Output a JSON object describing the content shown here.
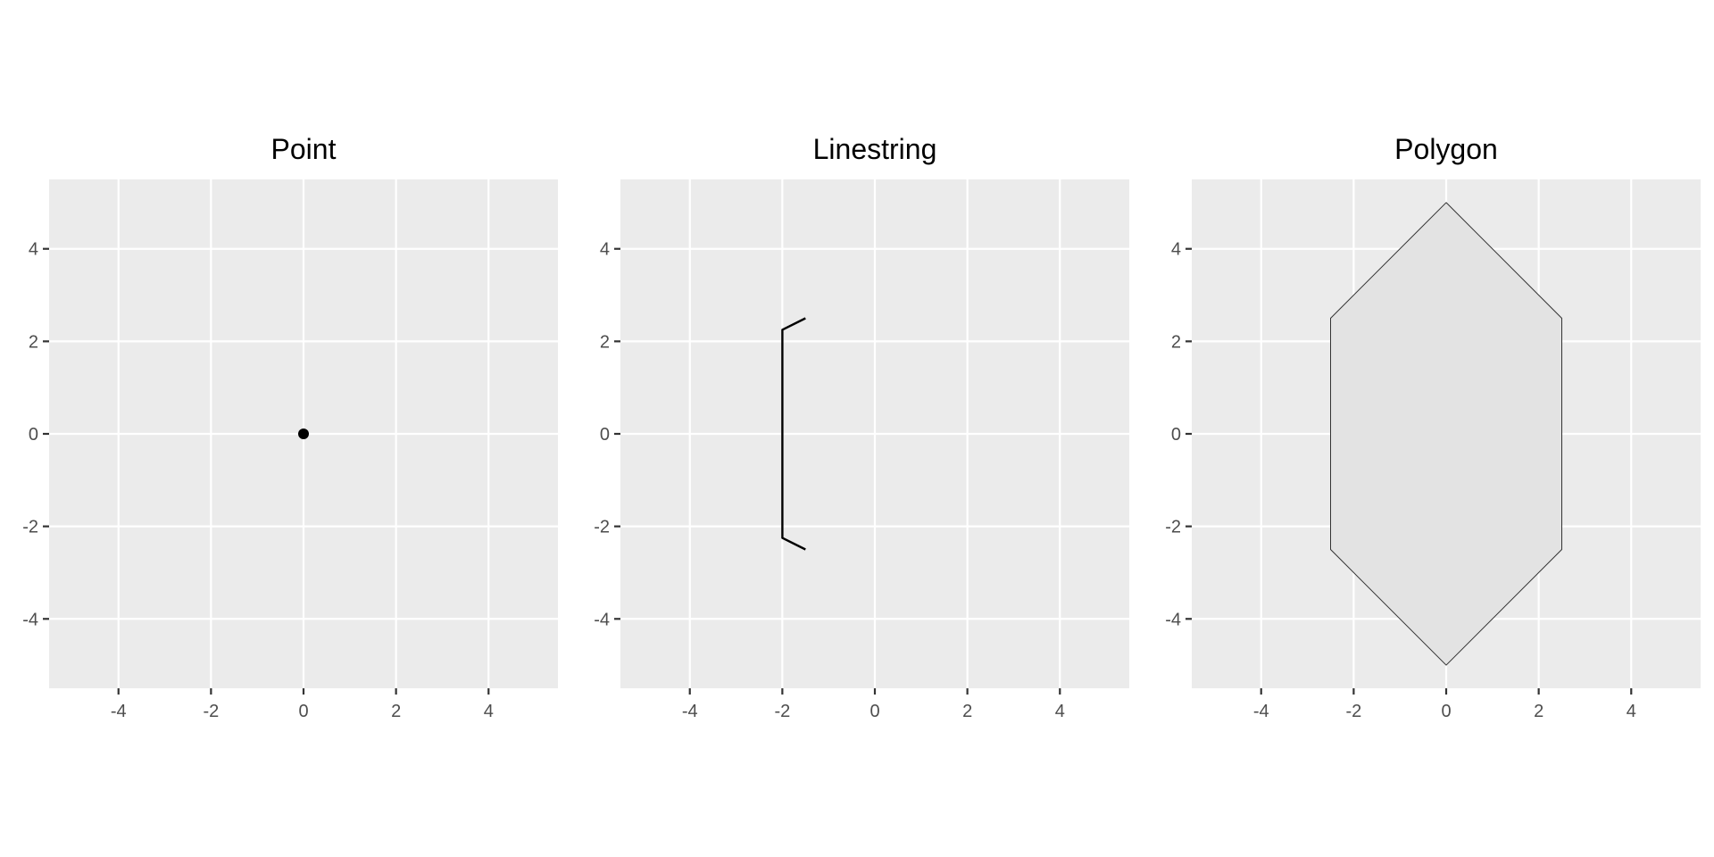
{
  "chart_data": [
    {
      "type": "scatter",
      "title": "Point",
      "xlim": [
        -5.5,
        5.5
      ],
      "ylim": [
        -5.5,
        5.5
      ],
      "x_ticks": [
        -4,
        -2,
        0,
        2,
        4
      ],
      "y_ticks": [
        -4,
        -2,
        0,
        2,
        4
      ],
      "x_tick_labels": [
        "-4",
        "-2",
        "0",
        "2",
        "4"
      ],
      "y_tick_labels": [
        "-4",
        "-2",
        "0",
        "2",
        "4"
      ],
      "grid": true,
      "geometry": {
        "kind": "point",
        "coordinates": [
          [
            0,
            0
          ]
        ]
      },
      "colors": {
        "stroke": "#000000",
        "fill": "#000000",
        "panel": "#ebebeb"
      }
    },
    {
      "type": "line",
      "title": "Linestring",
      "xlim": [
        -5.5,
        5.5
      ],
      "ylim": [
        -5.5,
        5.5
      ],
      "x_ticks": [
        -4,
        -2,
        0,
        2,
        4
      ],
      "y_ticks": [
        -4,
        -2,
        0,
        2,
        4
      ],
      "x_tick_labels": [
        "-4",
        "-2",
        "0",
        "2",
        "4"
      ],
      "y_tick_labels": [
        "-4",
        "-2",
        "0",
        "2",
        "4"
      ],
      "grid": true,
      "geometry": {
        "kind": "linestring",
        "coordinates": [
          [
            -1.5,
            2.5
          ],
          [
            -2,
            2.25
          ],
          [
            -2,
            -2.25
          ],
          [
            -1.5,
            -2.5
          ]
        ]
      },
      "colors": {
        "stroke": "#000000",
        "fill": "none",
        "panel": "#ebebeb"
      }
    },
    {
      "type": "area",
      "title": "Polygon",
      "xlim": [
        -5.5,
        5.5
      ],
      "ylim": [
        -5.5,
        5.5
      ],
      "x_ticks": [
        -4,
        -2,
        0,
        2,
        4
      ],
      "y_ticks": [
        -4,
        -2,
        0,
        2,
        4
      ],
      "x_tick_labels": [
        "-4",
        "-2",
        "0",
        "2",
        "4"
      ],
      "y_tick_labels": [
        "-4",
        "-2",
        "0",
        "2",
        "4"
      ],
      "grid": true,
      "geometry": {
        "kind": "polygon",
        "coordinates": [
          [
            0,
            5
          ],
          [
            2.5,
            2.5
          ],
          [
            2.5,
            -2.5
          ],
          [
            0,
            -5
          ],
          [
            -2.5,
            -2.5
          ],
          [
            -2.5,
            2.5
          ],
          [
            0,
            5
          ]
        ]
      },
      "colors": {
        "stroke": "#333333",
        "fill": "#e3e3e3",
        "panel": "#ebebeb"
      }
    }
  ]
}
